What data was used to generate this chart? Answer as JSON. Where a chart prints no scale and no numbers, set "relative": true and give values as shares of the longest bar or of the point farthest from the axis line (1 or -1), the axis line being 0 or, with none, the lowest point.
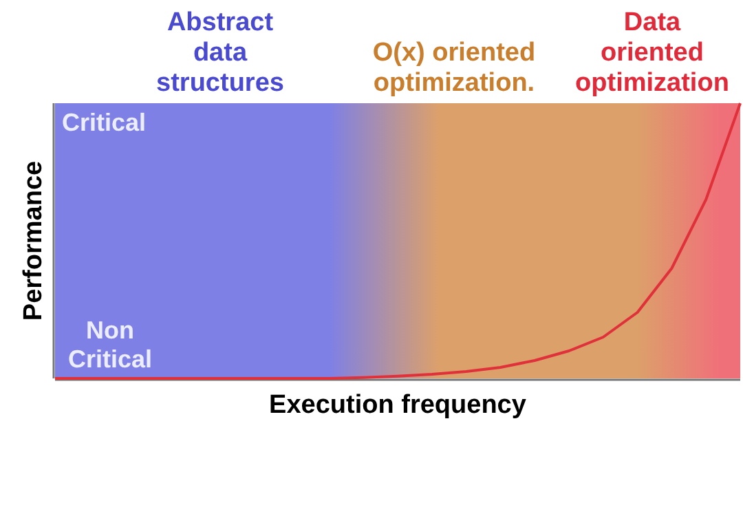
{
  "chart_data": {
    "type": "line",
    "relative": true,
    "xlabel": "Execution frequency",
    "ylabel": "Performance",
    "categories": [
      null,
      null,
      null,
      null,
      null,
      null,
      null,
      null,
      null,
      null,
      null,
      null,
      null,
      null,
      null,
      null,
      null,
      null,
      null,
      null,
      null
    ],
    "marker": "none",
    "line_style": "solid",
    "series": [
      {
        "color": "#e0303a",
        "values": [
          0,
          0,
          0,
          0,
          0,
          0,
          0,
          0,
          0,
          0.003,
          0.008,
          0.015,
          0.025,
          0.04,
          0.065,
          0.1,
          0.15,
          0.24,
          0.4,
          0.65,
          1
        ]
      }
    ],
    "annotations": [
      "Abstract data structures",
      "O(x) oriented optimization.",
      "Data oriented optimization",
      "Critical",
      "Non Critical"
    ]
  }
}
